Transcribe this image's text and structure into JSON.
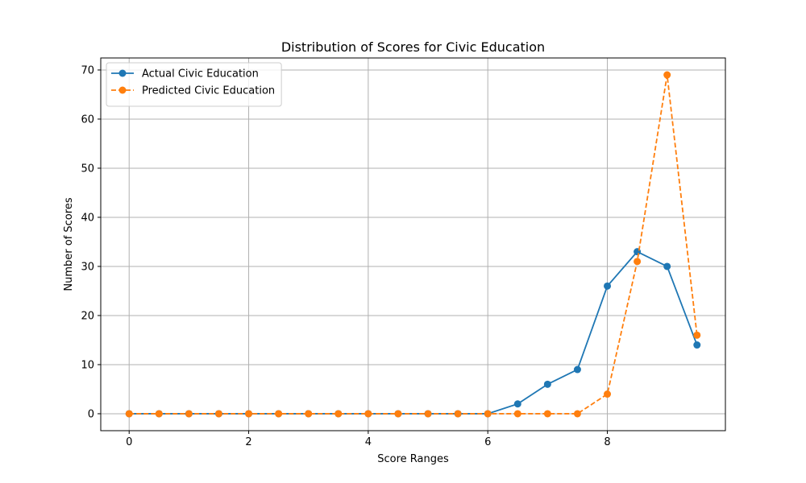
{
  "chart_data": {
    "type": "line",
    "title": "Distribution of Scores for Civic Education",
    "xlabel": "Score Ranges",
    "ylabel": "Number of Scores",
    "x": [
      0,
      0.5,
      1,
      1.5,
      2,
      2.5,
      3,
      3.5,
      4,
      4.5,
      5,
      5.5,
      6,
      6.5,
      7,
      7.5,
      8,
      8.5,
      9,
      9.5
    ],
    "xlim": [
      -0.475,
      9.975
    ],
    "ylim": [
      -3.45,
      72.45
    ],
    "xticks": [
      0,
      2,
      4,
      6,
      8
    ],
    "yticks": [
      0,
      10,
      20,
      30,
      40,
      50,
      60,
      70
    ],
    "grid": true,
    "legend_position": "top-left",
    "series": [
      {
        "name": "Actual Civic Education",
        "color": "#1f77b4",
        "linestyle": "solid",
        "marker": "circle",
        "values": [
          0,
          0,
          0,
          0,
          0,
          0,
          0,
          0,
          0,
          0,
          0,
          0,
          0,
          2,
          6,
          9,
          26,
          33,
          30,
          14
        ]
      },
      {
        "name": "Predicted Civic Education",
        "color": "#ff7f0e",
        "linestyle": "dashed",
        "marker": "circle",
        "values": [
          0,
          0,
          0,
          0,
          0,
          0,
          0,
          0,
          0,
          0,
          0,
          0,
          0,
          0,
          0,
          0,
          4,
          31,
          69,
          16
        ]
      }
    ]
  }
}
